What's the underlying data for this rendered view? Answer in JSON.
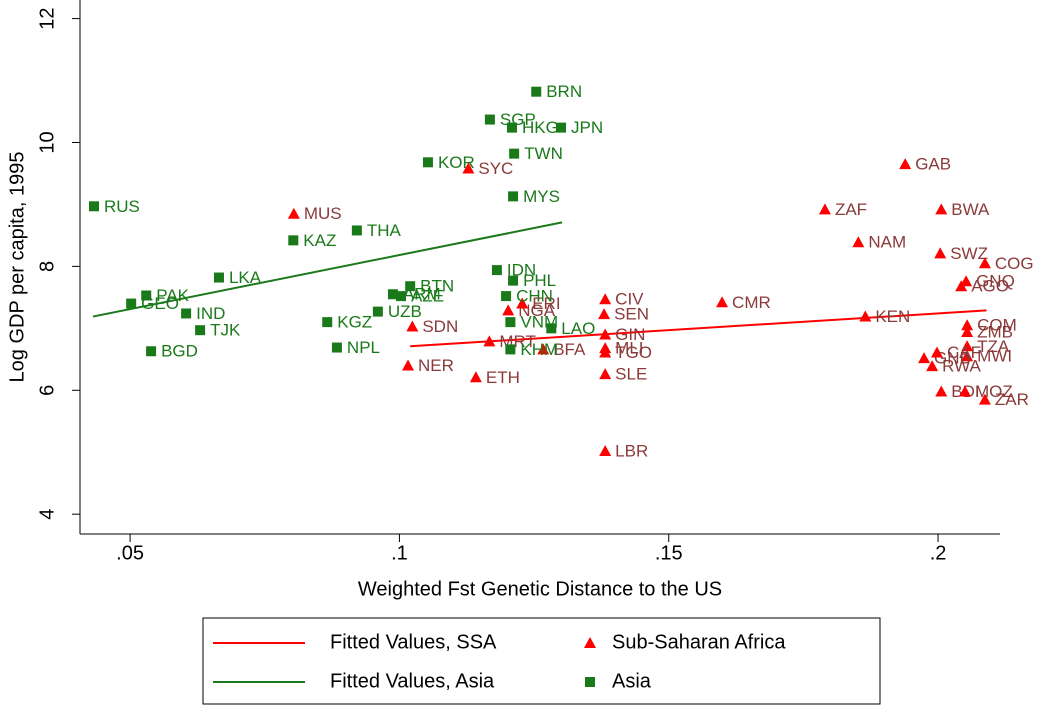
{
  "chart_data": {
    "type": "scatter",
    "x_label": "Weighted Fst Genetic Distance to the US",
    "y_label": "Log GDP per capita, 1995",
    "xlim": [
      0.0407,
      0.2115
    ],
    "ylim": [
      3.68,
      12.3
    ],
    "xticks": [
      {
        "value": 0.05,
        "label": ".05"
      },
      {
        "value": 0.1,
        "label": ".1"
      },
      {
        "value": 0.15,
        "label": ".15"
      },
      {
        "value": 0.2,
        "label": ".2"
      }
    ],
    "yticks": [
      4,
      6,
      8,
      10,
      12
    ],
    "series": [
      {
        "name": "Fitted Values, SSA",
        "kind": "line",
        "color": "#ff0000",
        "x": [
          0.102,
          0.209
        ],
        "values": [
          6.71,
          7.29
        ]
      },
      {
        "name": "Fitted Values, Asia",
        "kind": "line",
        "color": "#1a7a1a",
        "x": [
          0.0431,
          0.1302
        ],
        "values": [
          7.19,
          8.71
        ]
      },
      {
        "name": "Sub-Saharan Africa",
        "kind": "scatter",
        "marker": "triangle",
        "color": "#ff0000",
        "label_color": "#8b3a3a",
        "labels": [
          "MUS",
          "SYC",
          "SDN",
          "NER",
          "ETH",
          "NGA",
          "ERI",
          "MRT",
          "BFA",
          "CIV",
          "SEN",
          "GIN",
          "MLI",
          "TGO",
          "SLE",
          "LBR",
          "CMR",
          "KEN",
          "ZAF",
          "NAM",
          "GAB",
          "BWA",
          "SWZ",
          "COG",
          "GNQ",
          "AGO",
          "COM",
          "ZMB",
          "TZA",
          "MWI",
          "GNB",
          "RWA",
          "BDI",
          "MOZ",
          "ZAR",
          "CAF"
        ],
        "x": [
          0.0804,
          0.1128,
          0.1024,
          0.1016,
          0.1142,
          0.1202,
          0.1228,
          0.1167,
          0.1267,
          0.1382,
          0.138,
          0.1382,
          0.1382,
          0.1382,
          0.1382,
          0.1382,
          0.1599,
          0.1865,
          0.179,
          0.1852,
          0.1939,
          0.2006,
          0.2004,
          0.2087,
          0.2052,
          0.2043,
          0.2054,
          0.2054,
          0.2054,
          0.2054,
          0.1974,
          0.1989,
          0.2006,
          0.205,
          0.2087,
          0.1998
        ],
        "values": [
          8.85,
          9.58,
          7.03,
          6.4,
          6.21,
          7.29,
          7.4,
          6.79,
          6.66,
          7.47,
          7.23,
          6.9,
          6.68,
          6.61,
          6.26,
          5.02,
          7.42,
          7.19,
          8.92,
          8.39,
          9.65,
          8.92,
          8.21,
          8.05,
          7.76,
          7.68,
          7.05,
          6.94,
          6.71,
          6.55,
          6.52,
          6.39,
          5.98,
          5.98,
          5.85,
          6.61
        ]
      },
      {
        "name": "Asia",
        "kind": "scatter",
        "marker": "square",
        "color": "#1a7a1a",
        "label_color": "#1a7a1a",
        "labels": [
          "RUS",
          "PAK",
          "GEO",
          "IND",
          "TJK",
          "BGD",
          "LKA",
          "KAZ",
          "THA",
          "KGZ",
          "NPL",
          "UZB",
          "BTN",
          "ARM",
          "AZE",
          "KOR",
          "SGP",
          "HKG",
          "JPN",
          "BRN",
          "TWN",
          "MYS",
          "IDN",
          "PHL",
          "CHN",
          "VNM",
          "LAO",
          "KHM"
        ],
        "x": [
          0.0433,
          0.053,
          0.0502,
          0.0604,
          0.063,
          0.0539,
          0.0665,
          0.0803,
          0.0921,
          0.0866,
          0.0884,
          0.096,
          0.102,
          0.0988,
          0.1003,
          0.1053,
          0.1168,
          0.1209,
          0.13,
          0.1254,
          0.1213,
          0.1211,
          0.1181,
          0.1211,
          0.1198,
          0.1206,
          0.1282,
          0.1206
        ],
        "values": [
          8.97,
          7.53,
          7.4,
          7.24,
          6.97,
          6.63,
          7.82,
          8.42,
          8.58,
          7.1,
          6.69,
          7.27,
          7.68,
          7.55,
          7.52,
          9.68,
          10.37,
          10.24,
          10.24,
          10.82,
          9.82,
          9.13,
          7.94,
          7.77,
          7.52,
          7.1,
          7.0,
          6.66
        ]
      }
    ]
  }
}
